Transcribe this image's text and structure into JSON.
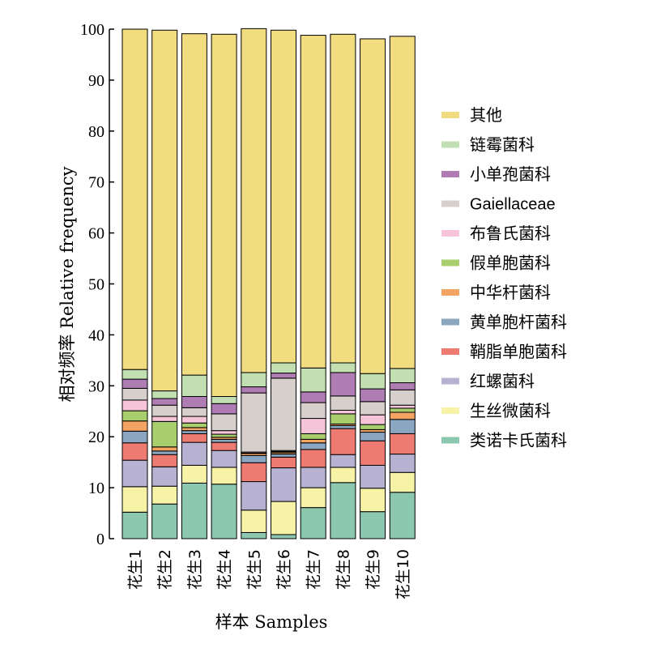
{
  "chart_data": {
    "type": "bar",
    "stacked": true,
    "title": "",
    "xlabel": "样本 Samples",
    "ylabel": "相对频率 Relative frequency",
    "ylim": [
      0,
      100
    ],
    "yticks": [
      0,
      10,
      20,
      30,
      40,
      50,
      60,
      70,
      80,
      90,
      100
    ],
    "grid": false,
    "legend_position": "right",
    "categories": [
      "花生1",
      "花生2",
      "花生3",
      "花生4",
      "花生5",
      "花生6",
      "花生7",
      "花生8",
      "花生9",
      "花生10"
    ],
    "series": [
      {
        "name": "类诺卡氏菌科",
        "color": "#8cc7b0",
        "values": [
          5.2,
          6.8,
          10.9,
          10.7,
          1.2,
          0.8,
          6.1,
          11.0,
          5.3,
          9.1
        ]
      },
      {
        "name": "生丝微菌科",
        "color": "#f6f2a6",
        "values": [
          5.0,
          3.5,
          3.5,
          3.3,
          4.4,
          6.5,
          3.9,
          3.0,
          4.6,
          3.9
        ]
      },
      {
        "name": "红螺菌科",
        "color": "#b7b1d2",
        "values": [
          5.2,
          3.8,
          4.5,
          3.3,
          5.6,
          6.6,
          4.0,
          2.5,
          4.5,
          3.6
        ]
      },
      {
        "name": "鞘脂单胞菌科",
        "color": "#ee7b71",
        "values": [
          3.4,
          2.4,
          1.7,
          1.6,
          3.7,
          2.1,
          3.5,
          5.1,
          4.8,
          4.0
        ]
      },
      {
        "name": "黄单胞杆菌科",
        "color": "#8aa6c0",
        "values": [
          2.3,
          0.7,
          0.6,
          0.6,
          1.4,
          0.6,
          1.3,
          0.6,
          1.7,
          2.8
        ]
      },
      {
        "name": "中华杆菌科",
        "color": "#f3a362",
        "values": [
          2.0,
          0.8,
          0.6,
          0.4,
          0.4,
          0.3,
          0.7,
          0.3,
          0.5,
          1.4
        ]
      },
      {
        "name": "假单胞菌科",
        "color": "#a8ce6e",
        "values": [
          2.0,
          5.0,
          0.9,
          0.6,
          0.1,
          0.2,
          1.1,
          2.0,
          1.0,
          0.8
        ]
      },
      {
        "name": "布鲁氏菌科",
        "color": "#f5c4d8",
        "values": [
          2.1,
          1.0,
          1.3,
          0.7,
          0.2,
          0.2,
          3.0,
          0.7,
          1.9,
          0.6
        ]
      },
      {
        "name": "Gaiellaceae",
        "color": "#d6cfcc",
        "values": [
          2.3,
          2.2,
          1.7,
          3.3,
          11.6,
          14.2,
          3.1,
          2.8,
          2.6,
          3.0
        ]
      },
      {
        "name": "小单孢菌科",
        "color": "#b07cb4",
        "values": [
          1.8,
          1.3,
          2.2,
          2.0,
          1.2,
          1.0,
          2.1,
          4.6,
          2.5,
          1.4
        ]
      },
      {
        "name": "链霉菌科",
        "color": "#c1dfb0",
        "values": [
          1.9,
          1.5,
          4.2,
          1.4,
          2.8,
          2.0,
          4.7,
          1.9,
          3.0,
          2.8
        ]
      },
      {
        "name": "其他",
        "color": "#f2dc80",
        "values": [
          66.8,
          70.8,
          67.0,
          71.1,
          67.5,
          65.3,
          65.3,
          64.5,
          65.7,
          65.2
        ]
      }
    ]
  }
}
